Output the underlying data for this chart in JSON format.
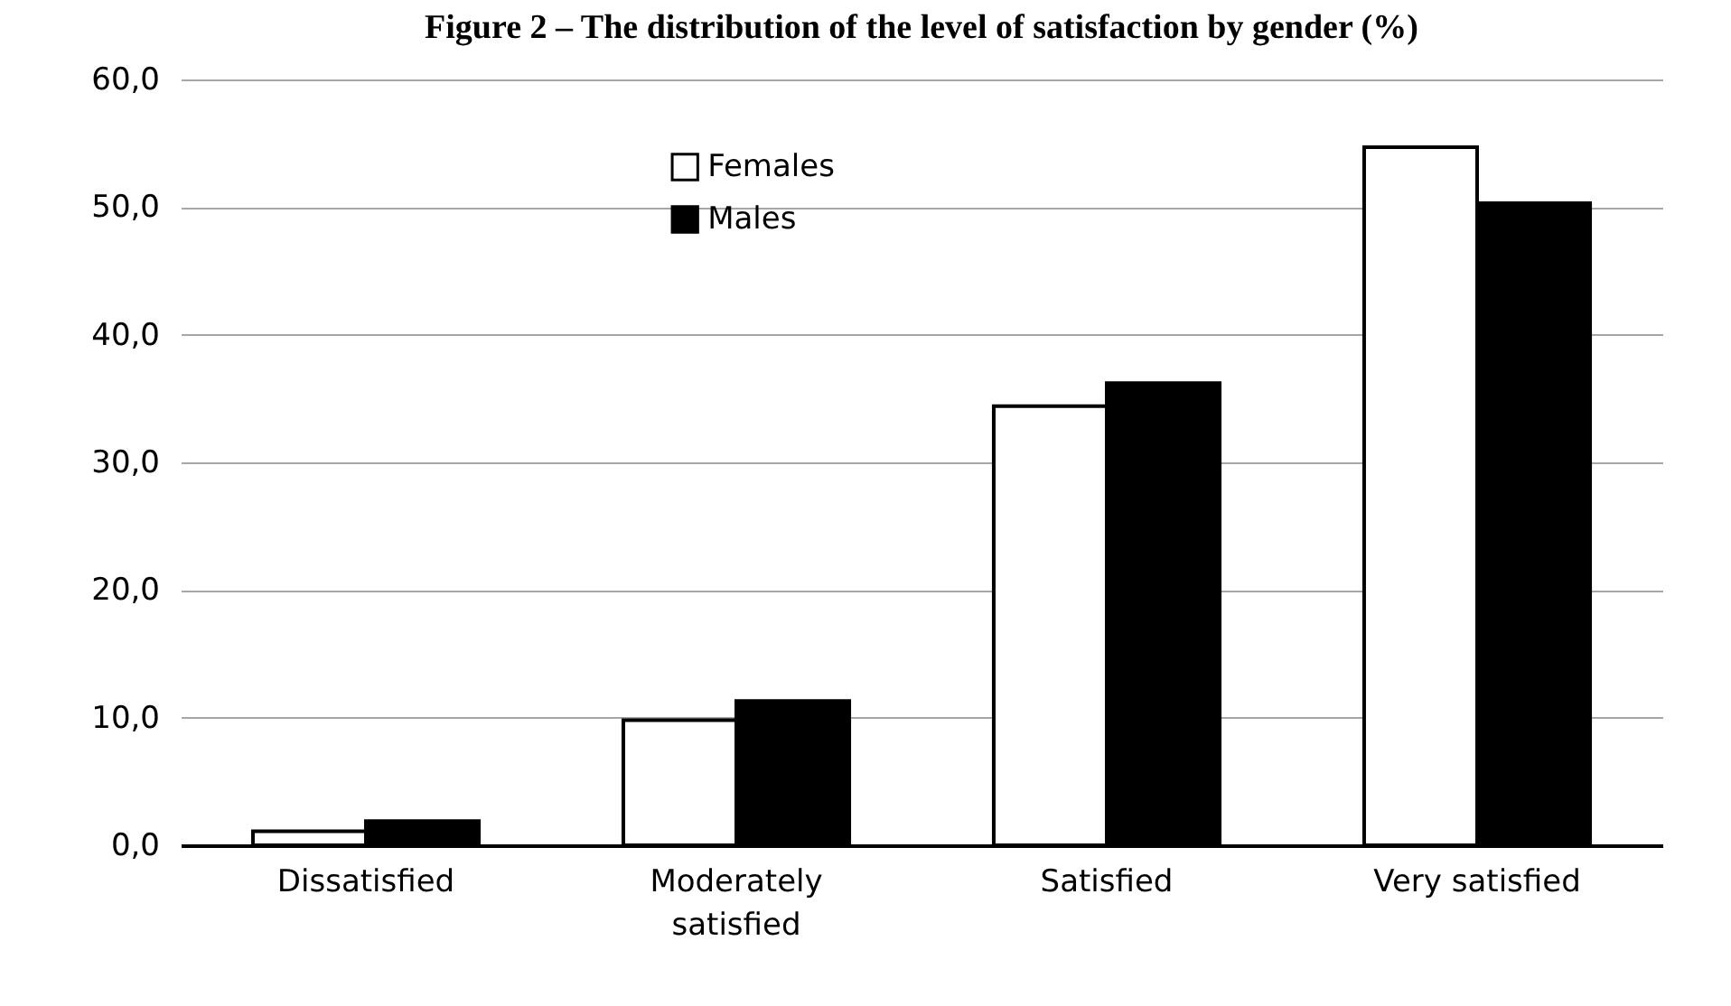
{
  "chart_data": {
    "type": "bar",
    "title": "Figure 2 – The distribution of the level of satisfaction by gender (%)",
    "categories": [
      "Dissatisfied",
      "Moderately satisfied",
      "Satisfied",
      "Very satisfied"
    ],
    "series": [
      {
        "name": "Females",
        "color": "#ffffff",
        "values": [
          1.1,
          9.8,
          34.4,
          54.7
        ]
      },
      {
        "name": "Males",
        "color": "#000000",
        "values": [
          1.9,
          11.3,
          36.2,
          50.3
        ]
      }
    ],
    "ylim": [
      0,
      60
    ],
    "yticks": [
      {
        "value": 0,
        "label": "0,0"
      },
      {
        "value": 10,
        "label": "10,0"
      },
      {
        "value": 20,
        "label": "20,0"
      },
      {
        "value": 30,
        "label": "30,0"
      },
      {
        "value": 40,
        "label": "40,0"
      },
      {
        "value": 50,
        "label": "50,0"
      },
      {
        "value": 60,
        "label": "60,0"
      }
    ],
    "grid": "y",
    "legend": "top"
  }
}
